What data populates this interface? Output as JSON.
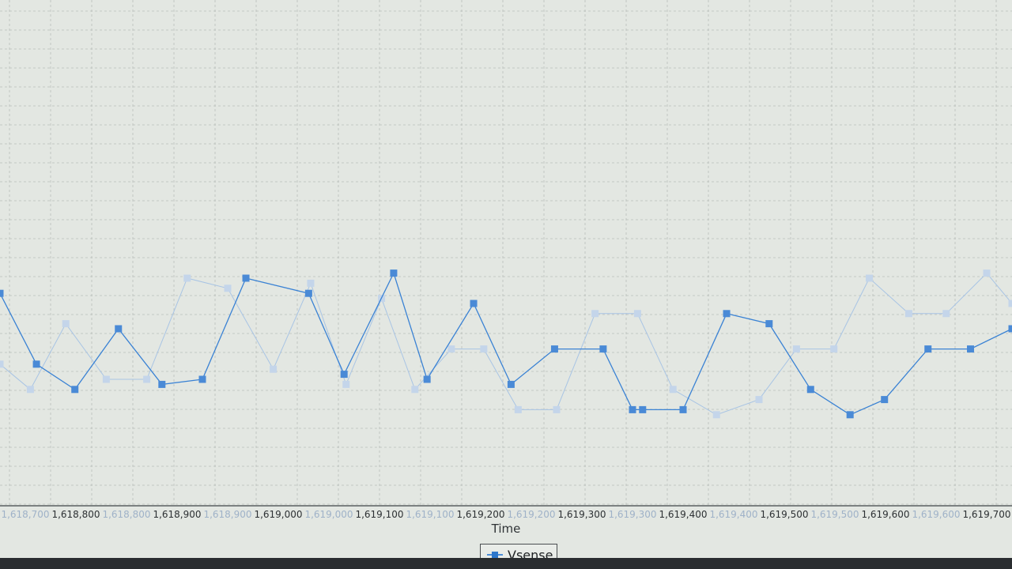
{
  "chart_data": {
    "type": "line",
    "xlabel": "Time",
    "ylabel": "",
    "x_tick_labels": [
      "1,618,700",
      "1,618,800",
      "1,618,800",
      "1,618,900",
      "1,618,900",
      "1,619,000",
      "1,619,000",
      "1,619,100",
      "1,619,100",
      "1,619,200",
      "1,619,200",
      "1,619,300",
      "1,619,300",
      "1,619,400",
      "1,619,400",
      "1,619,500",
      "1,619,500",
      "1,619,600",
      "1,619,600",
      "1,619,700"
    ],
    "xlim": [
      1618750,
      1619750
    ],
    "ylim": [
      0,
      100
    ],
    "grid": true,
    "legend_position": "bottom-center",
    "series": [
      {
        "name": "Vsense",
        "color": "#3a82d4",
        "x": [
          1618750,
          1618786,
          1618824,
          1618867,
          1618910,
          1618950,
          1618993,
          1619055,
          1619090,
          1619139,
          1619172,
          1619218,
          1619255,
          1619298,
          1619346,
          1619375,
          1619385,
          1619425,
          1619468,
          1619510,
          1619551,
          1619590,
          1619624,
          1619667,
          1619709,
          1619750
        ],
        "values": [
          42,
          28,
          23,
          35,
          24,
          25,
          45,
          42,
          26,
          46,
          25,
          40,
          24,
          31,
          31,
          19,
          19,
          19,
          38,
          36,
          23,
          18,
          21,
          31,
          31,
          35
        ]
      },
      {
        "name": "",
        "color": "#a8c4e4",
        "x": [
          1618750,
          1618780,
          1618815,
          1618855,
          1618895,
          1618935,
          1618975,
          1619020,
          1619057,
          1619092,
          1619127,
          1619160,
          1619196,
          1619228,
          1619262,
          1619300,
          1619338,
          1619380,
          1619415,
          1619458,
          1619500,
          1619537,
          1619574,
          1619609,
          1619648,
          1619685,
          1619725,
          1619750
        ],
        "values": [
          28,
          23,
          36,
          25,
          25,
          45,
          43,
          27,
          44,
          24,
          41,
          23,
          31,
          31,
          19,
          19,
          38,
          38,
          23,
          18,
          21,
          31,
          31,
          45,
          38,
          38,
          46,
          40
        ]
      }
    ]
  }
}
